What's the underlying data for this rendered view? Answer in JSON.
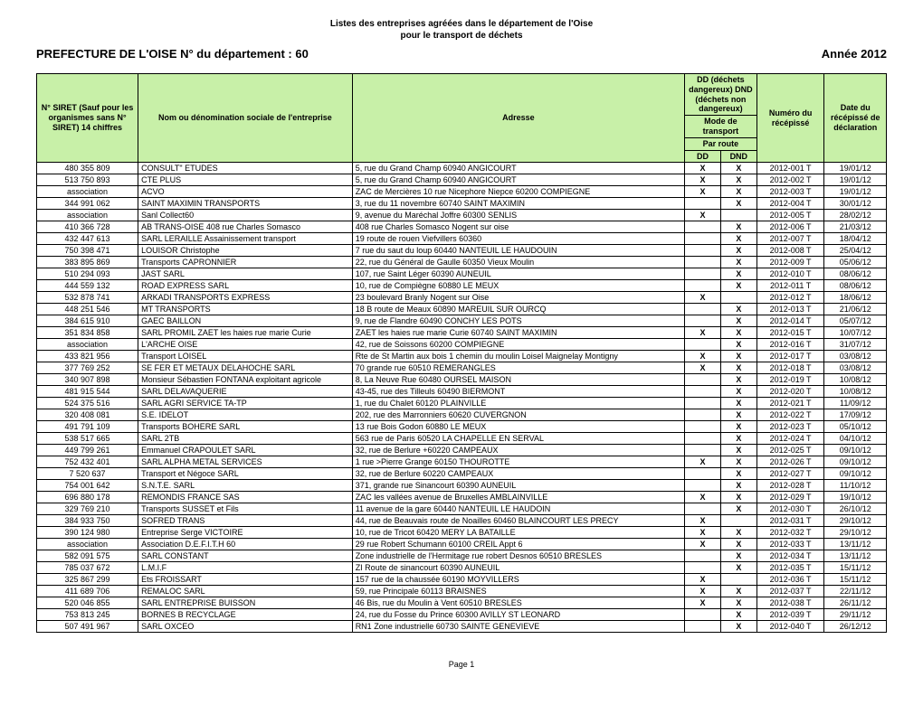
{
  "doc_title_line1": "Listes des entreprises agréées dans le département de l'Oise",
  "doc_title_line2": "pour le transport de déchets",
  "header_left": "PREFECTURE DE L'OISE  N° du département : 60",
  "header_right": "Année 2012",
  "footer": "Page 1",
  "theadColor": "#c8f0a8",
  "colHeaders": {
    "siret": "N° SIRET\n(Sauf pour les organismes sans N° SIRET)\n14 chiffres",
    "name": "Nom ou dénomination sociale de l'entreprise",
    "addr": "Adresse",
    "modeGroup": "DD (déchets dangereux) DND (déchets non dangereux)",
    "modeSub": "Mode de transport",
    "route": "Par route",
    "dd": "DD",
    "dnd": "DND",
    "num": "Numéro du récépissé",
    "date": "Date du récépissé de déclaration"
  },
  "rows": [
    {
      "siret": "480 355 809",
      "name": "CONSULT\" ETUDES",
      "addr": "5, rue du Grand Champ 60940 ANGICOURT",
      "dd": "X",
      "dnd": "X",
      "num": "2012-001 T",
      "date": "19/01/12"
    },
    {
      "siret": "513 750 893",
      "name": "CTE PLUS",
      "addr": "5, rue du Grand Champ 60940 ANGICOURT",
      "dd": "X",
      "dnd": "X",
      "num": "2012-002 T",
      "date": "19/01/12"
    },
    {
      "siret": "association",
      "name": "ACVO",
      "addr": "ZAC de Mercières 10 rue Nicephore Niepce 60200 COMPIEGNE",
      "dd": "X",
      "dnd": "X",
      "num": "2012-003 T",
      "date": "19/01/12"
    },
    {
      "siret": "344 991 062",
      "name": "SAINT MAXIMIN TRANSPORTS",
      "addr": "3, rue du 11 novembre 60740 SAINT MAXIMIN",
      "dd": "",
      "dnd": "X",
      "num": "2012-004 T",
      "date": "30/01/12"
    },
    {
      "siret": "association",
      "name": "Sanl Collect60",
      "addr": "9, avenue du Maréchal Joffre 60300 SENLIS",
      "dd": "X",
      "dnd": "",
      "num": "2012-005 T",
      "date": "28/02/12"
    },
    {
      "siret": "410 366 728",
      "name": "AB TRANS-OISE 408 rue Charles Somasco",
      "addr": "408 rue Charles Somasco Nogent sur oise",
      "dd": "",
      "dnd": "X",
      "num": "2012-006 T",
      "date": "21/03/12"
    },
    {
      "siret": "432 447 613",
      "name": "SARL LERAILLE Assainissement transport",
      "addr": "19 route de rouen Viefvillers 60360",
      "dd": "",
      "dnd": "X",
      "num": "2012-007 T",
      "date": "18/04/12"
    },
    {
      "siret": "750 398 471",
      "name": "LOUISOR Christophe",
      "addr": "7 rue du saut du loup 60440 NANTEUIL LE HAUDOUIN",
      "dd": "",
      "dnd": "X",
      "num": "2012-008 T",
      "date": "25/04/12"
    },
    {
      "siret": "383 895 869",
      "name": "Transports CAPRONNIER",
      "addr": "22, rue du Général de Gaulle 60350 Vieux Moulin",
      "dd": "",
      "dnd": "X",
      "num": "2012-009 T",
      "date": "05/06/12"
    },
    {
      "siret": "510 294 093",
      "name": "JAST SARL",
      "addr": "107, rue Saint Léger 60390 AUNEUIL",
      "dd": "",
      "dnd": "X",
      "num": "2012-010 T",
      "date": "08/06/12"
    },
    {
      "siret": "444 559 132",
      "name": "ROAD EXPRESS SARL",
      "addr": "10, rue de Compiègne 60880 LE MEUX",
      "dd": "",
      "dnd": "X",
      "num": "2012-011 T",
      "date": "08/06/12"
    },
    {
      "siret": "532 878 741",
      "name": "ARKADI TRANSPORTS EXPRESS",
      "addr": "23 boulevard Branly Nogent sur Oise",
      "dd": "X",
      "dnd": "",
      "num": "2012-012 T",
      "date": "18/06/12"
    },
    {
      "siret": "448 251 546",
      "name": "MT TRANSPORTS",
      "addr": "18 B route de Meaux 60890 MAREUIL SUR OURCQ",
      "dd": "",
      "dnd": "X",
      "num": "2012-013 T",
      "date": "21/06/12"
    },
    {
      "siret": "384 615 910",
      "name": "GAEC BAILLON",
      "addr": "9, rue de Flandre 60490 CONCHY LES POTS",
      "dd": "",
      "dnd": "X",
      "num": "2012-014 T",
      "date": "05/07/12"
    },
    {
      "siret": "351 834 858",
      "name": "SARL PROMIL ZAET les haies rue marie Curie",
      "addr": "ZAET les haies rue marie Curie 60740 SAINT MAXIMIN",
      "dd": "X",
      "dnd": "X",
      "num": "2012-015 T",
      "date": "10/07/12"
    },
    {
      "siret": "association",
      "name": "L'ARCHE OISE",
      "addr": "42, rue de Soissons 60200 COMPIEGNE",
      "dd": "",
      "dnd": "X",
      "num": "2012-016 T",
      "date": "31/07/12"
    },
    {
      "siret": "433 821 956",
      "name": "Transport LOISEL",
      "addr": "Rte de St Martin aux bois 1 chemin du moulin Loisel Maignelay Montigny",
      "dd": "X",
      "dnd": "X",
      "num": "2012-017 T",
      "date": "03/08/12"
    },
    {
      "siret": "377 769 252",
      "name": "SE FER ET METAUX DELAHOCHE SARL",
      "addr": "70 grande rue 60510 REMERANGLES",
      "dd": "X",
      "dnd": "X",
      "num": "2012-018 T",
      "date": "03/08/12"
    },
    {
      "siret": "340 907 898",
      "name": "Monsieur Sébastien FONTANA exploitant agricole",
      "addr": "8, La Neuve Rue 60480 OURSEL MAISON",
      "dd": "",
      "dnd": "X",
      "num": "2012-019 T",
      "date": "10/08/12"
    },
    {
      "siret": "481 915 544",
      "name": "SARL DELAVAQUERIE",
      "addr": "43-45, rue des Tilleuls 60490 BIERMONT",
      "dd": "",
      "dnd": "X",
      "num": "2012-020 T",
      "date": "10/08/12"
    },
    {
      "siret": "524 375 516",
      "name": "SARL AGRI SERVICE TA-TP",
      "addr": "1, rue du Chalet 60120 PLAINVILLE",
      "dd": "",
      "dnd": "X",
      "num": "2012-021 T",
      "date": "11/09/12"
    },
    {
      "siret": "320 408 081",
      "name": "S.E. IDELOT",
      "addr": "202, rue des Marronniers 60620 CUVERGNON",
      "dd": "",
      "dnd": "X",
      "num": "2012-022 T",
      "date": "17/09/12"
    },
    {
      "siret": "491 791 109",
      "name": "Transports BOHERE SARL",
      "addr": "13 rue Bois Godon 60880 LE MEUX",
      "dd": "",
      "dnd": "X",
      "num": "2012-023 T",
      "date": "05/10/12"
    },
    {
      "siret": "538 517 665",
      "name": "SARL 2TB",
      "addr": "563 rue de Paris 60520 LA CHAPELLE EN SERVAL",
      "dd": "",
      "dnd": "X",
      "num": "2012-024 T",
      "date": "04/10/12"
    },
    {
      "siret": "449 799 261",
      "name": "Emmanuel CRAPOULET SARL",
      "addr": "32, rue de Berlure +60220 CAMPEAUX",
      "dd": "",
      "dnd": "X",
      "num": "2012-025 T",
      "date": "09/10/12"
    },
    {
      "siret": "752 432 401",
      "name": "SARL ALPHA METAL SERVICES",
      "addr": "1 rue >Pierre Grange 60150 THOUROTTE",
      "dd": "X",
      "dnd": "X",
      "num": "2012-026 T",
      "date": "09/10/12"
    },
    {
      "siret": "7 520 637",
      "name": "Transport et Négoce SARL",
      "addr": "32, rue de Berlure 60220 CAMPEAUX",
      "dd": "",
      "dnd": "X",
      "num": "2012-027 T",
      "date": "09/10/12"
    },
    {
      "siret": "754 001 642",
      "name": "S.N.T.E.  SARL",
      "addr": "371, grande rue Sinancourt 60390 AUNEUIL",
      "dd": "",
      "dnd": "X",
      "num": "2012-028 T",
      "date": "11/10/12"
    },
    {
      "siret": "696 880 178",
      "name": "REMONDIS FRANCE SAS",
      "addr": "ZAC les vallées avenue de Bruxelles AMBLAINVILLE",
      "dd": "X",
      "dnd": "X",
      "num": "2012-029 T",
      "date": "19/10/12"
    },
    {
      "siret": "329 769 210",
      "name": "Transports SUSSET et Fils",
      "addr": "11 avenue de la gare 60440 NANTEUIL LE HAUDOIN",
      "dd": "",
      "dnd": "X",
      "num": "2012-030 T",
      "date": "26/10/12"
    },
    {
      "siret": "384 933 750",
      "name": "SOFRED TRANS",
      "addr": "44, rue de Beauvais route de Noailles 60460 BLAINCOURT LES PRECY",
      "dd": "X",
      "dnd": "",
      "num": "2012-031 T",
      "date": "29/10/12"
    },
    {
      "siret": "390 124 980",
      "name": "Entreprise Serge VICTOIRE",
      "addr": "10, rue de Tricot 60420 MERY LA BATAILLE",
      "dd": "X",
      "dnd": "X",
      "num": "2012-032 T",
      "date": "29/10/12"
    },
    {
      "siret": "association",
      "name": "Association D.E.F.I.T.H 60",
      "addr": "29 rue Robert Schumann 60100 CREIL Appt 6",
      "dd": "X",
      "dnd": "X",
      "num": "2012-033 T",
      "date": "13/11/12"
    },
    {
      "siret": "582 091 575",
      "name": "SARL CONSTANT",
      "addr": "Zone industrielle de l'Hermitage rue robert Desnos 60510 BRESLES",
      "dd": "",
      "dnd": "X",
      "num": "2012-034 T",
      "date": "13/11/12"
    },
    {
      "siret": "785 037 672",
      "name": "L.M.I.F",
      "addr": "ZI Route de sinancourt 60390 AUNEUIL",
      "dd": "",
      "dnd": "X",
      "num": "2012-035 T",
      "date": "15/11/12"
    },
    {
      "siret": "325 867 299",
      "name": "Ets FROISSART",
      "addr": "157 rue de la chaussée 60190 MOYVILLERS",
      "dd": "X",
      "dnd": "",
      "num": "2012-036 T",
      "date": "15/11/12"
    },
    {
      "siret": "411 689 706",
      "name": "REMALOC SARL",
      "addr": "59, rue Principale 60113 BRAISNES",
      "dd": "X",
      "dnd": "X",
      "num": "2012-037 T",
      "date": "22/11/12"
    },
    {
      "siret": "520 046 855",
      "name": "SARL ENTREPRISE BUISSON",
      "addr": "46 Bis, rue du Moulin à Vent 60510 BRESLES",
      "dd": "X",
      "dnd": "X",
      "num": "2012-038 T",
      "date": "26/11/12"
    },
    {
      "siret": "753 813 245",
      "name": "BORNES B RECYCLAGE",
      "addr": "24, rue du Fosse du Prince 60300 AVILLY ST LEONARD",
      "dd": "",
      "dnd": "X",
      "num": "2012-039 T",
      "date": "29/11/12"
    },
    {
      "siret": "507 491 967",
      "name": "SARL OXCEO",
      "addr": "RN1 Zone industrielle 60730 SAINTE GENEVIEVE",
      "dd": "",
      "dnd": "X",
      "num": "2012-040 T",
      "date": "26/12/12"
    }
  ]
}
